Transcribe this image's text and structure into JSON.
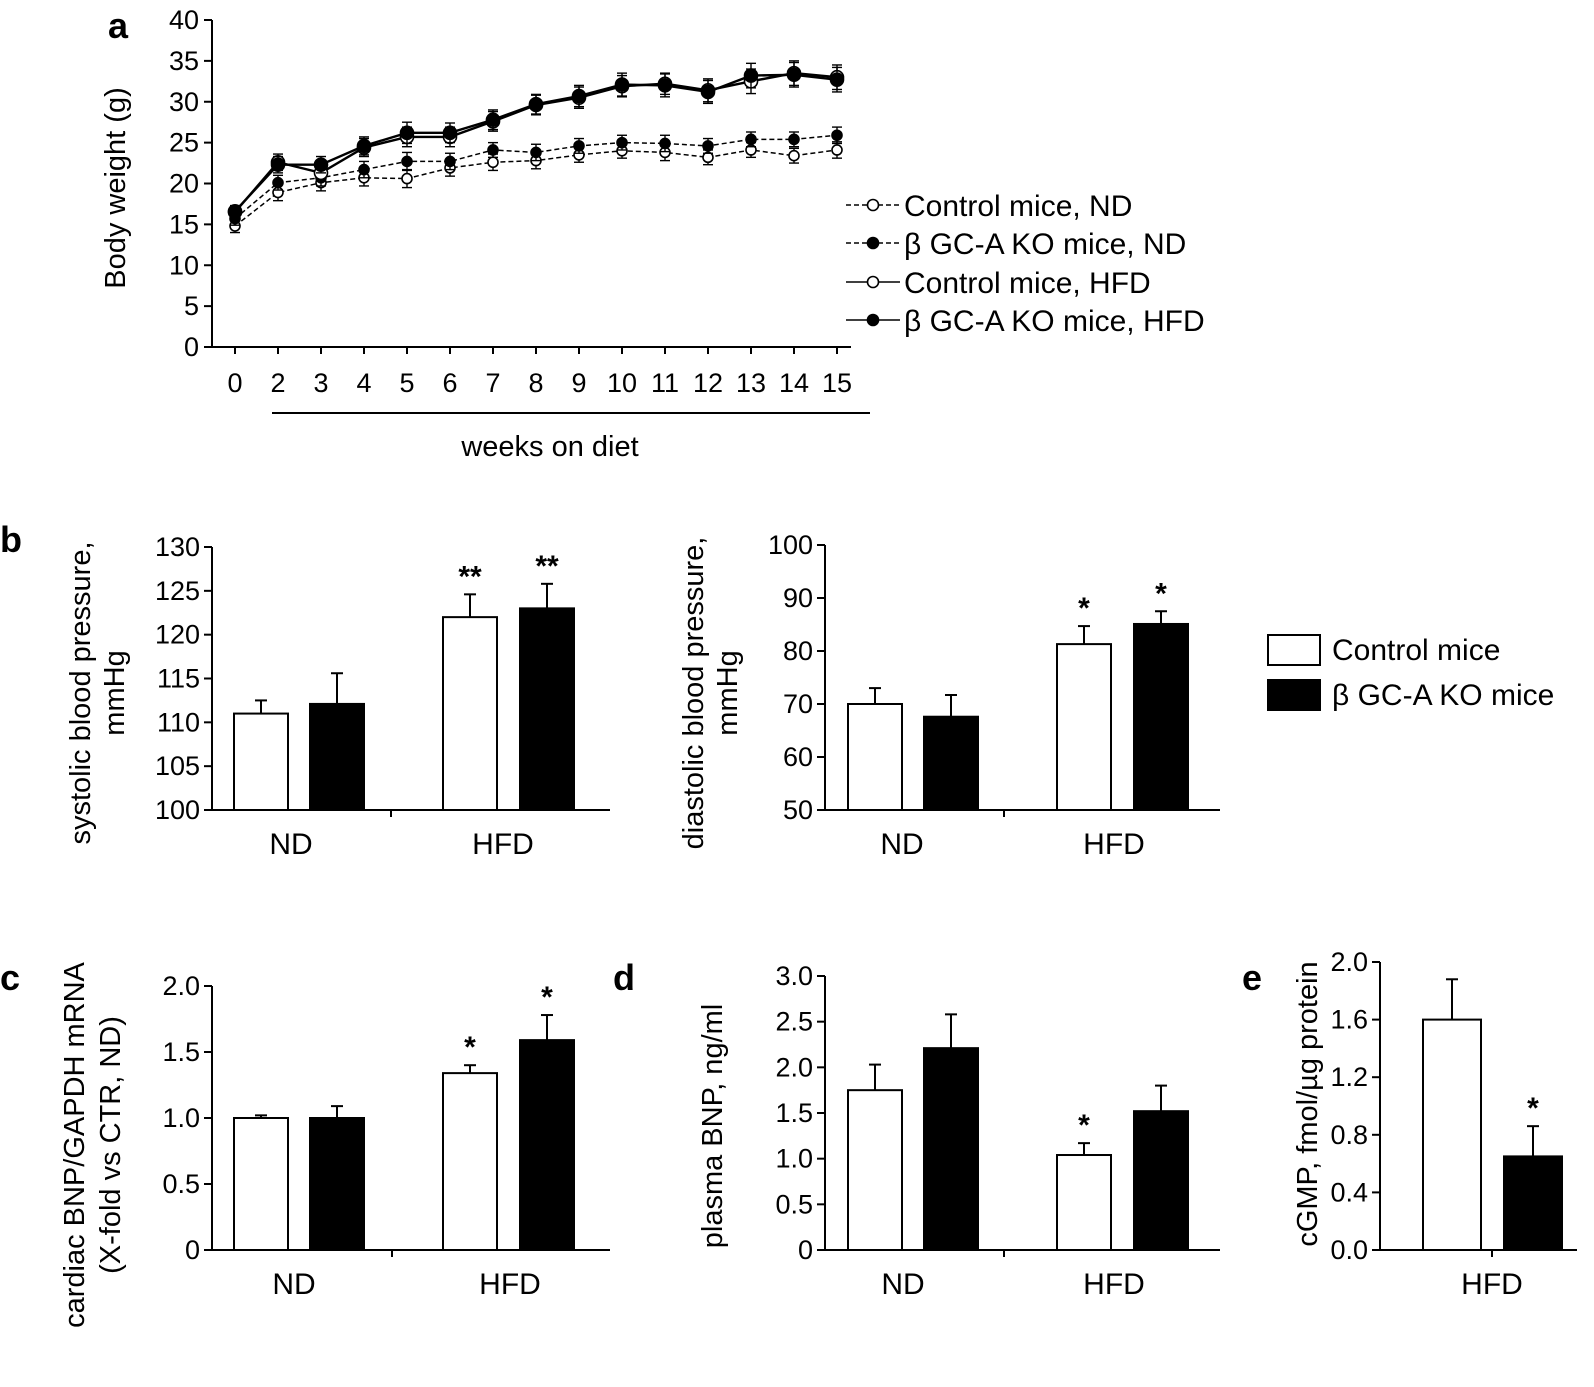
{
  "figure": {
    "legend_a": [
      "Control mice, ND",
      "β GC-A KO mice, ND",
      "Control mice, HFD",
      "β GC-A KO mice, HFD"
    ],
    "legend_b": [
      "Control mice",
      "β GC-A KO mice"
    ],
    "colors": {
      "control_fill": "#ffffff",
      "ko_fill": "#000000",
      "ink": "#000000"
    }
  },
  "chart_data": [
    {
      "id": "a",
      "panel_label": "a",
      "type": "line",
      "ylabel": "Body weight (g)",
      "xlabel": "weeks on diet",
      "ylim": [
        0,
        40
      ],
      "yticks": [
        0,
        5,
        10,
        15,
        20,
        25,
        30,
        35,
        40
      ],
      "x": [
        "0",
        "2",
        "3",
        "4",
        "5",
        "6",
        "7",
        "8",
        "9",
        "10",
        "11",
        "12",
        "13",
        "14",
        "15"
      ],
      "series": [
        {
          "name": "Control mice, ND",
          "marker": "open",
          "line": "dashed",
          "values": [
            14.8,
            18.9,
            20.1,
            20.7,
            20.6,
            21.9,
            22.6,
            22.8,
            23.5,
            24.0,
            23.8,
            23.2,
            24.1,
            23.4,
            24.1
          ],
          "errors": [
            0.8,
            1.0,
            1.0,
            1.0,
            1.1,
            1.0,
            1.0,
            1.0,
            0.9,
            0.9,
            1.0,
            0.9,
            0.9,
            0.9,
            1.0
          ]
        },
        {
          "name": "β GC-A KO mice, ND",
          "marker": "filled",
          "line": "dashed",
          "values": [
            15.7,
            20.1,
            20.7,
            21.7,
            22.7,
            22.7,
            24.1,
            23.8,
            24.6,
            25.0,
            24.9,
            24.6,
            25.4,
            25.4,
            25.9
          ],
          "errors": [
            0.8,
            0.9,
            1.0,
            1.0,
            1.1,
            1.0,
            0.9,
            1.0,
            0.9,
            0.9,
            1.0,
            0.9,
            0.9,
            0.9,
            1.0
          ]
        },
        {
          "name": "Control mice, HFD",
          "marker": "open",
          "line": "solid",
          "values": [
            16.5,
            22.6,
            21.3,
            24.4,
            25.7,
            25.7,
            27.6,
            29.6,
            30.5,
            31.9,
            32.2,
            31.4,
            32.5,
            33.5,
            33.0
          ],
          "errors": [
            0.7,
            1.0,
            1.0,
            1.1,
            1.2,
            1.2,
            1.2,
            1.2,
            1.3,
            1.3,
            1.3,
            1.4,
            1.5,
            1.5,
            1.5
          ]
        },
        {
          "name": "β GC-A KO mice, HFD",
          "marker": "filled",
          "line": "solid",
          "values": [
            16.6,
            22.3,
            22.3,
            24.6,
            26.2,
            26.2,
            27.8,
            29.7,
            30.7,
            32.1,
            32.0,
            31.2,
            33.2,
            33.3,
            32.7
          ],
          "errors": [
            0.7,
            1.0,
            1.0,
            1.1,
            1.3,
            1.2,
            1.2,
            1.2,
            1.3,
            1.4,
            1.4,
            1.4,
            1.5,
            1.5,
            1.5
          ]
        }
      ]
    },
    {
      "id": "b1",
      "panel_label": "b",
      "type": "bar",
      "ylabel": [
        "systolic blood pressure,",
        "mmHg"
      ],
      "ylim": [
        100,
        130
      ],
      "yticks": [
        100,
        105,
        110,
        115,
        120,
        125,
        130
      ],
      "categories": [
        "ND",
        "HFD"
      ],
      "series": [
        {
          "name": "Control mice",
          "values": [
            111.0,
            122.0
          ],
          "errors": [
            1.5,
            2.6
          ]
        },
        {
          "name": "β GC-A KO mice",
          "values": [
            112.1,
            123.0
          ],
          "errors": [
            3.5,
            2.8
          ]
        }
      ],
      "annotations": [
        [
          "",
          "**"
        ],
        [
          "",
          "**"
        ]
      ]
    },
    {
      "id": "b2",
      "type": "bar",
      "ylabel": [
        "diastolic blood pressure,",
        "mmHg"
      ],
      "ylim": [
        50,
        100
      ],
      "yticks": [
        50,
        60,
        70,
        80,
        90,
        100
      ],
      "categories": [
        "ND",
        "HFD"
      ],
      "series": [
        {
          "name": "Control mice",
          "values": [
            70.0,
            81.3
          ],
          "errors": [
            3.0,
            3.4
          ]
        },
        {
          "name": "β GC-A KO mice",
          "values": [
            67.6,
            85.1
          ],
          "errors": [
            4.1,
            2.4
          ]
        }
      ],
      "annotations": [
        [
          "",
          "*"
        ],
        [
          "",
          "*"
        ]
      ]
    },
    {
      "id": "c",
      "panel_label": "c",
      "type": "bar",
      "ylabel": [
        "cardiac BNP/GAPDH mRNA",
        "(X-fold vs CTR, ND)"
      ],
      "ylim": [
        0,
        2.0
      ],
      "yticks": [
        "0",
        "0.5",
        "1.0",
        "1.5",
        "2.0"
      ],
      "categories": [
        "ND",
        "HFD"
      ],
      "series": [
        {
          "name": "Control mice",
          "values": [
            1.0,
            1.34
          ],
          "errors": [
            0.02,
            0.06
          ]
        },
        {
          "name": "β GC-A KO mice",
          "values": [
            1.0,
            1.59
          ],
          "errors": [
            0.09,
            0.19
          ]
        }
      ],
      "annotations": [
        [
          "",
          "*"
        ],
        [
          "",
          "*"
        ]
      ]
    },
    {
      "id": "d",
      "panel_label": "d",
      "type": "bar",
      "ylabel": [
        "plasma BNP, ng/ml"
      ],
      "ylim": [
        0,
        3.0
      ],
      "yticks": [
        "0",
        "0.5",
        "1.0",
        "1.5",
        "2.0",
        "2.5",
        "3.0"
      ],
      "categories": [
        "ND",
        "HFD"
      ],
      "series": [
        {
          "name": "Control mice",
          "values": [
            1.75,
            1.04
          ],
          "errors": [
            0.28,
            0.13
          ]
        },
        {
          "name": "β GC-A KO mice",
          "values": [
            2.21,
            1.52
          ],
          "errors": [
            0.37,
            0.28
          ]
        }
      ],
      "annotations": [
        [
          "",
          "*"
        ],
        [
          "",
          ""
        ]
      ]
    },
    {
      "id": "e",
      "panel_label": "e",
      "type": "bar",
      "ylabel": [
        "cGMP, fmol/µg protein"
      ],
      "ylim": [
        0,
        2.0
      ],
      "yticks": [
        "0.0",
        "0.4",
        "0.8",
        "1.2",
        "1.6",
        "2.0"
      ],
      "categories": [
        "HFD"
      ],
      "series": [
        {
          "name": "Control mice",
          "values": [
            1.6
          ],
          "errors": [
            0.28
          ]
        },
        {
          "name": "β GC-A KO mice",
          "values": [
            0.65
          ],
          "errors": [
            0.21
          ]
        }
      ],
      "annotations": [
        [
          ""
        ],
        [
          "*"
        ]
      ]
    }
  ]
}
